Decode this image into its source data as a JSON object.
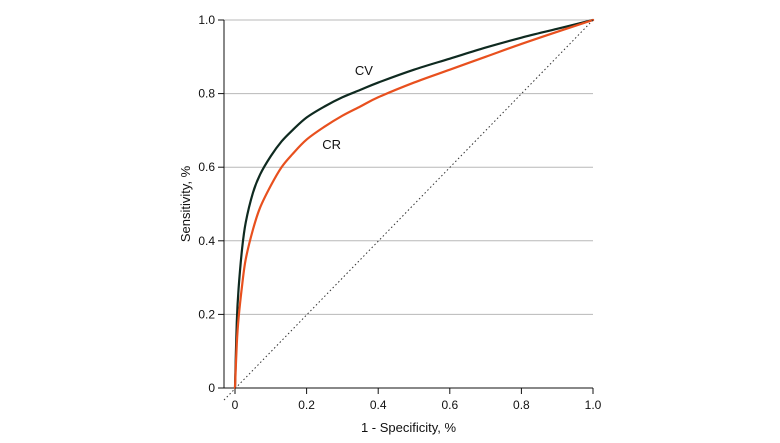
{
  "chart_data": {
    "type": "line",
    "title": "",
    "xlabel": "1 - Specificity, %",
    "ylabel": "Sensitivity, %",
    "xlim": [
      0,
      1
    ],
    "ylim": [
      0,
      1
    ],
    "x_ticks": [
      0,
      0.2,
      0.4,
      0.6,
      0.8,
      1.0
    ],
    "x_tick_labels": [
      "0",
      "0.2",
      "0.4",
      "0.6",
      "0.8",
      "1.0"
    ],
    "y_ticks": [
      0,
      0.2,
      0.4,
      0.6,
      0.8,
      1.0
    ],
    "y_tick_labels": [
      "0",
      "0.2",
      "0.4",
      "0.6",
      "0.8",
      "1.0"
    ],
    "grid": "horizontal",
    "series": [
      {
        "name": "CV",
        "label": "CV",
        "color": "#0f2a20",
        "x": [
          0,
          0.005,
          0.01,
          0.02,
          0.03,
          0.05,
          0.07,
          0.1,
          0.13,
          0.16,
          0.2,
          0.25,
          0.3,
          0.35,
          0.4,
          0.5,
          0.6,
          0.7,
          0.8,
          0.9,
          1.0
        ],
        "y": [
          0,
          0.18,
          0.27,
          0.38,
          0.45,
          0.53,
          0.58,
          0.63,
          0.67,
          0.7,
          0.735,
          0.765,
          0.79,
          0.81,
          0.83,
          0.865,
          0.895,
          0.925,
          0.952,
          0.976,
          1.0
        ]
      },
      {
        "name": "CR",
        "label": "CR",
        "color": "#e8501e",
        "x": [
          0,
          0.005,
          0.01,
          0.02,
          0.03,
          0.05,
          0.07,
          0.1,
          0.13,
          0.16,
          0.2,
          0.25,
          0.3,
          0.35,
          0.4,
          0.5,
          0.6,
          0.7,
          0.8,
          0.9,
          1.0
        ],
        "y": [
          0,
          0.12,
          0.19,
          0.28,
          0.35,
          0.43,
          0.49,
          0.55,
          0.6,
          0.635,
          0.675,
          0.71,
          0.74,
          0.765,
          0.79,
          0.83,
          0.865,
          0.9,
          0.935,
          0.968,
          1.0
        ]
      },
      {
        "name": "Reference",
        "label": "",
        "color": "#333333",
        "style": "dotted",
        "x": [
          0,
          1
        ],
        "y": [
          0,
          1
        ]
      }
    ],
    "annotations": [
      {
        "text": "CV",
        "x": 0.36,
        "y": 0.85
      },
      {
        "text": "CR",
        "x": 0.27,
        "y": 0.65
      }
    ]
  }
}
